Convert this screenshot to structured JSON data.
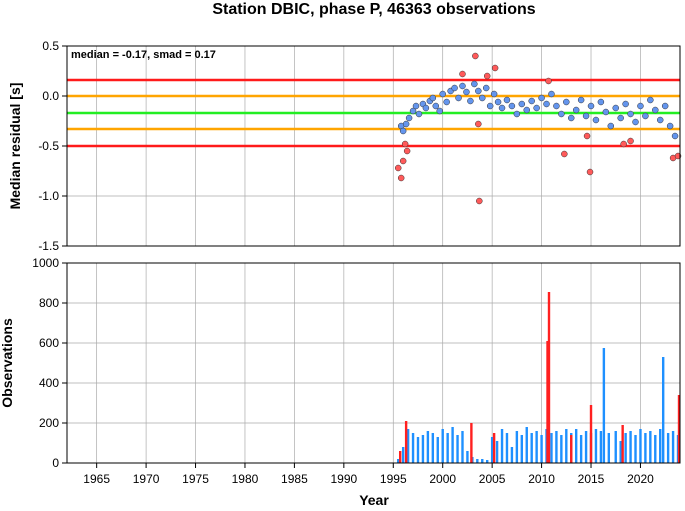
{
  "chart_data": [
    {
      "type": "scatter",
      "title": "Station DBIC, phase P, 46363 observations",
      "ylabel": "Median residual [s]",
      "xlim": [
        1962,
        2024
      ],
      "ylim": [
        -1.5,
        0.5
      ],
      "yticks": [
        "0.5",
        "0.0",
        "-0.5",
        "-1.0",
        "-1.5"
      ],
      "annotation": "median = -0.17, smad = 0.17",
      "grid": true,
      "reference_lines": [
        {
          "y": 0.16,
          "color": "#ff1a1a"
        },
        {
          "y": 0.0,
          "color": "#ffa500"
        },
        {
          "y": -0.17,
          "color": "#22ee22"
        },
        {
          "y": -0.33,
          "color": "#ffa500"
        },
        {
          "y": -0.5,
          "color": "#ff1a1a"
        }
      ],
      "series": [
        {
          "color": "#6495ed",
          "points": [
            [
              1995.8,
              -0.3
            ],
            [
              1996.0,
              -0.35
            ],
            [
              1996.3,
              -0.28
            ],
            [
              1996.6,
              -0.22
            ],
            [
              1997.0,
              -0.15
            ],
            [
              1997.3,
              -0.1
            ],
            [
              1997.6,
              -0.18
            ],
            [
              1998.0,
              -0.08
            ],
            [
              1998.3,
              -0.12
            ],
            [
              1998.7,
              -0.05
            ],
            [
              1999.0,
              -0.02
            ],
            [
              1999.3,
              -0.1
            ],
            [
              1999.7,
              -0.15
            ],
            [
              2000.0,
              0.02
            ],
            [
              2000.4,
              -0.06
            ],
            [
              2000.8,
              0.05
            ],
            [
              2001.2,
              0.08
            ],
            [
              2001.6,
              -0.02
            ],
            [
              2002.0,
              0.1
            ],
            [
              2002.4,
              0.04
            ],
            [
              2002.8,
              -0.05
            ],
            [
              2003.2,
              0.12
            ],
            [
              2003.6,
              0.05
            ],
            [
              2004.0,
              -0.02
            ],
            [
              2004.4,
              0.08
            ],
            [
              2004.8,
              -0.1
            ],
            [
              2005.2,
              0.02
            ],
            [
              2005.6,
              -0.06
            ],
            [
              2006.0,
              -0.12
            ],
            [
              2006.5,
              -0.04
            ],
            [
              2007.0,
              -0.1
            ],
            [
              2007.5,
              -0.18
            ],
            [
              2008.0,
              -0.08
            ],
            [
              2008.5,
              -0.14
            ],
            [
              2009.0,
              -0.05
            ],
            [
              2009.5,
              -0.12
            ],
            [
              2010.0,
              -0.02
            ],
            [
              2010.5,
              -0.08
            ],
            [
              2011.0,
              0.02
            ],
            [
              2011.5,
              -0.1
            ],
            [
              2012.0,
              -0.18
            ],
            [
              2012.5,
              -0.06
            ],
            [
              2013.0,
              -0.22
            ],
            [
              2013.5,
              -0.14
            ],
            [
              2014.0,
              -0.04
            ],
            [
              2014.5,
              -0.2
            ],
            [
              2015.0,
              -0.1
            ],
            [
              2015.5,
              -0.24
            ],
            [
              2016.0,
              -0.06
            ],
            [
              2016.5,
              -0.16
            ],
            [
              2017.0,
              -0.3
            ],
            [
              2017.5,
              -0.12
            ],
            [
              2018.0,
              -0.22
            ],
            [
              2018.5,
              -0.08
            ],
            [
              2019.0,
              -0.18
            ],
            [
              2019.5,
              -0.26
            ],
            [
              2020.0,
              -0.1
            ],
            [
              2020.5,
              -0.2
            ],
            [
              2021.0,
              -0.04
            ],
            [
              2021.5,
              -0.14
            ],
            [
              2022.0,
              -0.24
            ],
            [
              2022.5,
              -0.1
            ],
            [
              2023.0,
              -0.3
            ],
            [
              2023.5,
              -0.4
            ]
          ]
        },
        {
          "color": "#ff5a5a",
          "points": [
            [
              1995.5,
              -0.72
            ],
            [
              1995.8,
              -0.82
            ],
            [
              1996.0,
              -0.65
            ],
            [
              1996.2,
              -0.48
            ],
            [
              1996.4,
              -0.55
            ],
            [
              2002.0,
              0.22
            ],
            [
              2003.3,
              0.4
            ],
            [
              2003.6,
              -0.28
            ],
            [
              2003.7,
              -1.05
            ],
            [
              2004.5,
              0.2
            ],
            [
              2005.3,
              0.28
            ],
            [
              2010.7,
              0.15
            ],
            [
              2012.3,
              -0.58
            ],
            [
              2014.6,
              -0.4
            ],
            [
              2014.9,
              -0.76
            ],
            [
              2018.3,
              -0.48
            ],
            [
              2019.0,
              -0.45
            ],
            [
              2023.3,
              -0.62
            ],
            [
              2023.8,
              -0.6
            ]
          ]
        }
      ]
    },
    {
      "type": "bar",
      "xlabel": "Year",
      "ylabel": "Observations",
      "xlim": [
        1962,
        2024
      ],
      "ylim": [
        0,
        1000
      ],
      "xticks": [
        "1965",
        "1970",
        "1975",
        "1980",
        "1985",
        "1990",
        "1995",
        "2000",
        "2005",
        "2010",
        "2015",
        "2020"
      ],
      "yticks": [
        "1000",
        "800",
        "600",
        "400",
        "200",
        "0"
      ],
      "grid": true,
      "series": [
        {
          "color": "#1e90ff",
          "points": [
            [
              1995.5,
              20
            ],
            [
              1996.0,
              80
            ],
            [
              1996.5,
              170
            ],
            [
              1997.0,
              150
            ],
            [
              1997.5,
              130
            ],
            [
              1998.0,
              140
            ],
            [
              1998.5,
              160
            ],
            [
              1999.0,
              150
            ],
            [
              1999.5,
              130
            ],
            [
              2000.0,
              170
            ],
            [
              2000.5,
              150
            ],
            [
              2001.0,
              180
            ],
            [
              2001.5,
              140
            ],
            [
              2002.0,
              160
            ],
            [
              2002.5,
              60
            ],
            [
              2003.0,
              30
            ],
            [
              2003.5,
              20
            ],
            [
              2004.0,
              20
            ],
            [
              2004.5,
              15
            ],
            [
              2005.0,
              130
            ],
            [
              2005.5,
              110
            ],
            [
              2006.0,
              170
            ],
            [
              2006.5,
              150
            ],
            [
              2007.0,
              80
            ],
            [
              2007.5,
              160
            ],
            [
              2008.0,
              140
            ],
            [
              2008.5,
              180
            ],
            [
              2009.0,
              150
            ],
            [
              2009.5,
              160
            ],
            [
              2010.0,
              140
            ],
            [
              2010.5,
              170
            ],
            [
              2011.0,
              150
            ],
            [
              2011.5,
              160
            ],
            [
              2012.0,
              140
            ],
            [
              2012.5,
              170
            ],
            [
              2013.0,
              150
            ],
            [
              2013.5,
              170
            ],
            [
              2014.0,
              140
            ],
            [
              2014.5,
              160
            ],
            [
              2015.0,
              150
            ],
            [
              2015.5,
              170
            ],
            [
              2016.0,
              160
            ],
            [
              2016.3,
              575
            ],
            [
              2016.8,
              150
            ],
            [
              2017.5,
              160
            ],
            [
              2018.0,
              110
            ],
            [
              2018.5,
              150
            ],
            [
              2019.0,
              160
            ],
            [
              2019.5,
              140
            ],
            [
              2020.0,
              170
            ],
            [
              2020.5,
              150
            ],
            [
              2021.0,
              160
            ],
            [
              2021.5,
              140
            ],
            [
              2022.0,
              170
            ],
            [
              2022.3,
              530
            ],
            [
              2022.8,
              150
            ],
            [
              2023.3,
              160
            ],
            [
              2023.8,
              140
            ]
          ]
        },
        {
          "color": "#ff2020",
          "points": [
            [
              1995.7,
              60
            ],
            [
              1996.3,
              210
            ],
            [
              2002.9,
              200
            ],
            [
              2005.2,
              150
            ],
            [
              2010.6,
              610
            ],
            [
              2010.75,
              855
            ],
            [
              2013.0,
              140
            ],
            [
              2015.0,
              290
            ],
            [
              2018.2,
              190
            ],
            [
              2023.9,
              340
            ]
          ]
        }
      ]
    }
  ]
}
